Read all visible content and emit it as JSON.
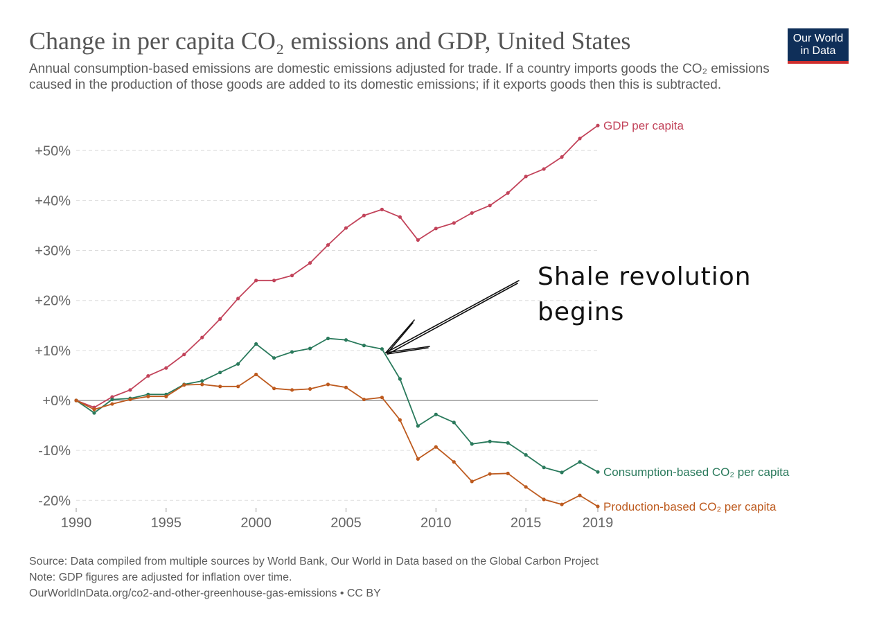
{
  "header": {
    "title": "Change in per capita CO₂ emissions and GDP, United States",
    "subtitle": "Annual consumption-based emissions are domestic emissions adjusted for trade. If a country imports goods the CO₂ emissions caused in the production of those goods are added to its domestic emissions; if it exports goods then this is subtracted."
  },
  "logo": {
    "line1": "Our World",
    "line2": "in Data",
    "bg_color": "#0f2f59",
    "accent_color": "#ce2d2d"
  },
  "footer": {
    "source": "Source: Data compiled from multiple sources by World Bank, Our World in Data based on the Global Carbon Project",
    "note": "Note: GDP figures are adjusted for inflation over time.",
    "url": "OurWorldInData.org/co2-and-other-greenhouse-gas-emissions • CC BY"
  },
  "annotation": {
    "line1": "Shale revolution",
    "line2": "begins",
    "points_to_year": 2007
  },
  "chart_data": {
    "type": "line",
    "x": [
      1990,
      1991,
      1992,
      1993,
      1994,
      1995,
      1996,
      1997,
      1998,
      1999,
      2000,
      2001,
      2002,
      2003,
      2004,
      2005,
      2006,
      2007,
      2008,
      2009,
      2010,
      2011,
      2012,
      2013,
      2014,
      2015,
      2016,
      2017,
      2018,
      2019
    ],
    "series": [
      {
        "name": "GDP per capita",
        "color": "#c2435a",
        "values": [
          0,
          -1.4,
          0.7,
          2.1,
          4.9,
          6.5,
          9.2,
          12.6,
          16.3,
          20.4,
          24.0,
          24.0,
          25.0,
          27.5,
          31.1,
          34.5,
          37.0,
          38.2,
          36.7,
          32.1,
          34.4,
          35.5,
          37.5,
          39.0,
          41.5,
          44.8,
          46.3,
          48.7,
          52.4,
          55.0
        ]
      },
      {
        "name": "Consumption-based CO₂ per capita",
        "color": "#2a7a5c",
        "values": [
          0,
          -2.5,
          0.2,
          0.4,
          1.2,
          1.2,
          3.2,
          3.9,
          5.6,
          7.3,
          11.3,
          8.5,
          9.7,
          10.4,
          12.4,
          12.1,
          11.0,
          10.3,
          4.3,
          -5.1,
          -2.8,
          -4.4,
          -8.7,
          -8.2,
          -8.5,
          -10.9,
          -13.4,
          -14.4,
          -12.3,
          -14.3
        ]
      },
      {
        "name": "Production-based CO₂ per capita",
        "color": "#bd5a1e",
        "values": [
          0,
          -1.8,
          -0.7,
          0.2,
          0.8,
          0.8,
          3.1,
          3.2,
          2.8,
          2.8,
          5.2,
          2.4,
          2.1,
          2.3,
          3.2,
          2.6,
          0.2,
          0.6,
          -3.9,
          -11.7,
          -9.3,
          -12.3,
          -16.2,
          -14.7,
          -14.6,
          -17.3,
          -19.8,
          -20.8,
          -19.0,
          -21.2
        ]
      }
    ],
    "y_ticks": [
      {
        "value": 50,
        "label": "+50%"
      },
      {
        "value": 40,
        "label": "+40%"
      },
      {
        "value": 30,
        "label": "+30%"
      },
      {
        "value": 20,
        "label": "+20%"
      },
      {
        "value": 10,
        "label": "+10%"
      },
      {
        "value": 0,
        "label": "+0%"
      },
      {
        "value": -10,
        "label": "-10%"
      },
      {
        "value": -20,
        "label": "-20%"
      }
    ],
    "x_ticks": [
      {
        "value": 1990,
        "label": "1990"
      },
      {
        "value": 1995,
        "label": "1995"
      },
      {
        "value": 2000,
        "label": "2000"
      },
      {
        "value": 2005,
        "label": "2005"
      },
      {
        "value": 2010,
        "label": "2010"
      },
      {
        "value": 2015,
        "label": "2015"
      },
      {
        "value": 2019,
        "label": "2019"
      }
    ],
    "xlim": [
      1990,
      2019
    ],
    "ylim": [
      -21.2,
      55.0
    ],
    "grid": "horizontal dashed",
    "legend": "inline labels at line ends (right)"
  }
}
